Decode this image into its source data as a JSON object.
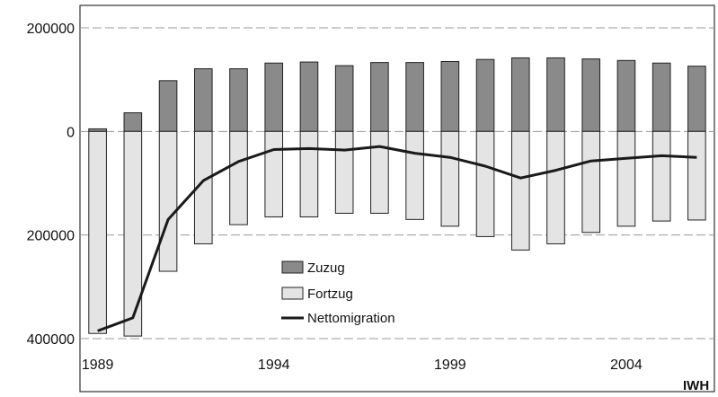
{
  "chart_data": {
    "type": "bar",
    "x": [
      1989,
      1990,
      1991,
      1992,
      1993,
      1994,
      1995,
      1996,
      1997,
      1998,
      1999,
      2000,
      2001,
      2002,
      2003,
      2004,
      2005,
      2006
    ],
    "series": [
      {
        "name": "Zuzug",
        "type": "bar",
        "color": "#8a8a8a",
        "values": [
          5000,
          36000,
          98000,
          121000,
          121000,
          132000,
          134000,
          127000,
          133000,
          133000,
          135000,
          139000,
          142000,
          142000,
          140000,
          137000,
          132000,
          126000
        ]
      },
      {
        "name": "Fortzug",
        "type": "bar",
        "color": "#e4e4e4",
        "values": [
          -390000,
          -395000,
          -270000,
          -217000,
          -180000,
          -165000,
          -165000,
          -158000,
          -158000,
          -170000,
          -183000,
          -203000,
          -229000,
          -217000,
          -195000,
          -183000,
          -173000,
          -171000
        ]
      },
      {
        "name": "Nettomigration",
        "type": "line",
        "color": "#1a1a1a",
        "values": [
          -385000,
          -360000,
          -170000,
          -95000,
          -58000,
          -35000,
          -33000,
          -36000,
          -29000,
          -42000,
          -50000,
          -67000,
          -90000,
          -75000,
          -57000,
          -52000,
          -47000,
          -50000
        ]
      }
    ],
    "yticks": [
      200000,
      0,
      -200000,
      -400000
    ],
    "ytick_labels": [
      "200000",
      "0",
      "200000",
      "400000"
    ],
    "xticks": [
      1989,
      1994,
      1999,
      2004
    ],
    "xtick_labels": [
      "1989",
      "1994",
      "1999",
      "2004"
    ],
    "ylim": [
      -400000,
      200000
    ],
    "xlim": [
      1988.5,
      2006.5
    ],
    "grid": true,
    "legend_position": "center-left",
    "source": "IWH"
  }
}
